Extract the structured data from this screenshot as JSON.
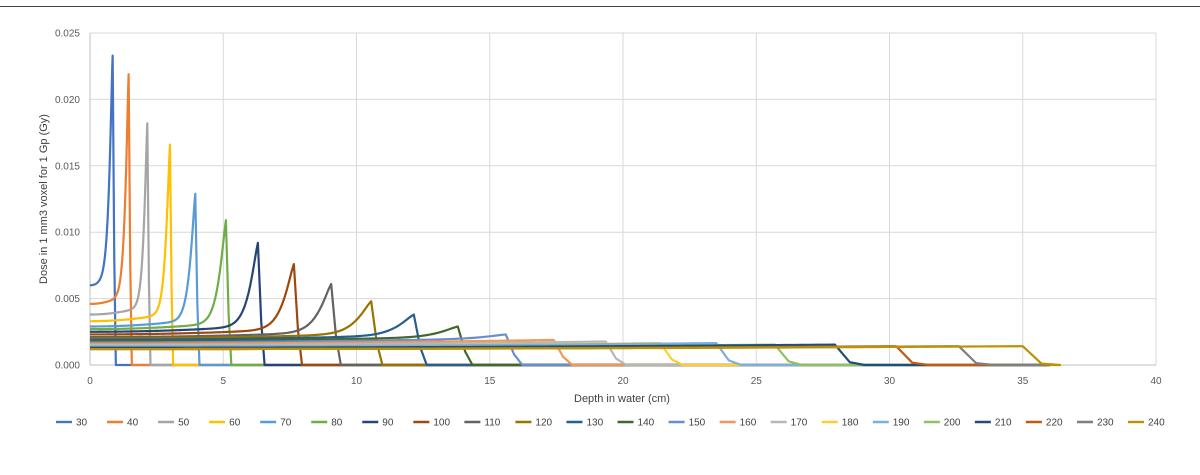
{
  "chart_data": {
    "type": "line",
    "title": "",
    "xlabel": "Depth in water (cm)",
    "ylabel": "Dose in 1 mm3 voxel for 1 Gp (Gy)",
    "xlim": [
      0,
      40
    ],
    "ylim": [
      0,
      0.025
    ],
    "x_ticks": [
      "0",
      "5",
      "10",
      "15",
      "20",
      "25",
      "30",
      "35",
      "40"
    ],
    "y_ticks": [
      "0.000",
      "0.005",
      "0.010",
      "0.015",
      "0.020",
      "0.025"
    ],
    "grid": "vertical and horizontal major gridlines",
    "legend_position": "bottom",
    "series": [
      {
        "name": "30",
        "color": "#4472C4",
        "range_cm": 0.85,
        "entrance_dose": 0.006,
        "peak_dose": 0.0233
      },
      {
        "name": "40",
        "color": "#ED7D31",
        "range_cm": 1.45,
        "entrance_dose": 0.0046,
        "peak_dose": 0.0219
      },
      {
        "name": "50",
        "color": "#A5A5A5",
        "range_cm": 2.15,
        "entrance_dose": 0.0038,
        "peak_dose": 0.0182
      },
      {
        "name": "60",
        "color": "#FFC000",
        "range_cm": 3.0,
        "entrance_dose": 0.0033,
        "peak_dose": 0.0166
      },
      {
        "name": "70",
        "color": "#5B9BD5",
        "range_cm": 3.95,
        "entrance_dose": 0.0029,
        "peak_dose": 0.0129
      },
      {
        "name": "80",
        "color": "#70AD47",
        "range_cm": 5.1,
        "entrance_dose": 0.0027,
        "peak_dose": 0.0109
      },
      {
        "name": "90",
        "color": "#264478",
        "range_cm": 6.3,
        "entrance_dose": 0.0025,
        "peak_dose": 0.0092
      },
      {
        "name": "100",
        "color": "#9E480E",
        "range_cm": 7.65,
        "entrance_dose": 0.0023,
        "peak_dose": 0.0076
      },
      {
        "name": "110",
        "color": "#636363",
        "range_cm": 9.05,
        "entrance_dose": 0.0021,
        "peak_dose": 0.0061
      },
      {
        "name": "120",
        "color": "#997300",
        "range_cm": 10.55,
        "entrance_dose": 0.002,
        "peak_dose": 0.0048
      },
      {
        "name": "130",
        "color": "#255E91",
        "range_cm": 12.15,
        "entrance_dose": 0.0019,
        "peak_dose": 0.0038
      },
      {
        "name": "140",
        "color": "#43682B",
        "range_cm": 13.8,
        "entrance_dose": 0.0018,
        "peak_dose": 0.0029
      },
      {
        "name": "150",
        "color": "#698ED0",
        "range_cm": 15.6,
        "entrance_dose": 0.0017,
        "peak_dose": 0.0023
      },
      {
        "name": "160",
        "color": "#F1975A",
        "range_cm": 17.4,
        "entrance_dose": 0.0016,
        "peak_dose": 0.0018
      },
      {
        "name": "170",
        "color": "#B7B7B7",
        "range_cm": 19.35,
        "entrance_dose": 0.0015,
        "peak_dose": 0.0014
      },
      {
        "name": "180",
        "color": "#FFCD33",
        "range_cm": 21.4,
        "entrance_dose": 0.0014,
        "peak_dose": 0.0012
      },
      {
        "name": "190",
        "color": "#7CAFDD",
        "range_cm": 23.5,
        "entrance_dose": 0.0014,
        "peak_dose": 0.001
      },
      {
        "name": "200",
        "color": "#8CC168",
        "range_cm": 25.7,
        "entrance_dose": 0.0013,
        "peak_dose": 0.0008
      },
      {
        "name": "210",
        "color": "#1F4E79",
        "range_cm": 27.95,
        "entrance_dose": 0.0013,
        "peak_dose": 0.0006
      },
      {
        "name": "220",
        "color": "#C55A11",
        "range_cm": 30.25,
        "entrance_dose": 0.0012,
        "peak_dose": 0.0005
      },
      {
        "name": "230",
        "color": "#7F7F7F",
        "range_cm": 32.6,
        "entrance_dose": 0.0012,
        "peak_dose": 0.0004
      },
      {
        "name": "240",
        "color": "#BF9000",
        "range_cm": 35.0,
        "entrance_dose": 0.0012,
        "peak_dose": 0.0003
      }
    ]
  }
}
